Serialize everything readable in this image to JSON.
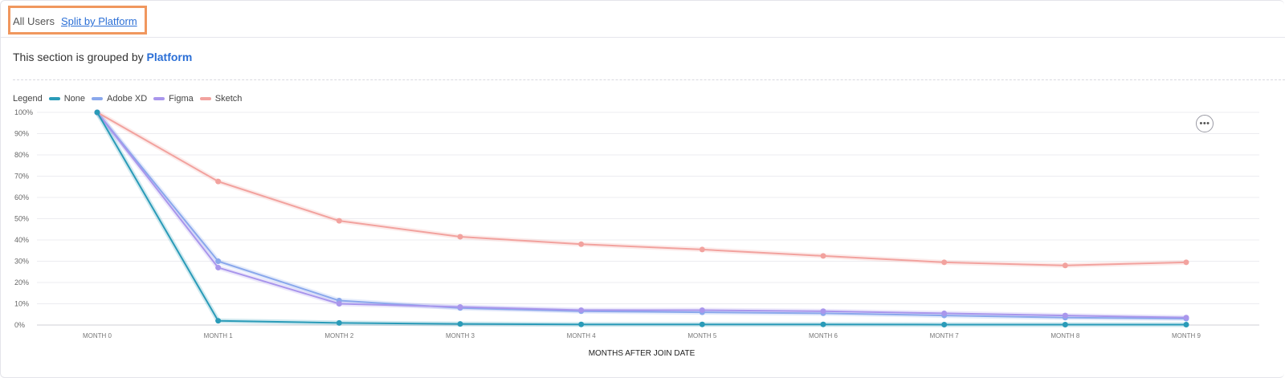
{
  "tabs": {
    "all_users": "All Users",
    "split_by_platform": "Split by Platform"
  },
  "grouping": {
    "prefix": "This section is grouped by",
    "field": "Platform"
  },
  "legend": {
    "title": "Legend"
  },
  "menu": {
    "more_icon": "ellipsis-icon",
    "more_glyph": "•••"
  },
  "colors": {
    "accent_link": "#2b6fd6",
    "highlight_border": "#f0975e"
  },
  "chart_data": {
    "type": "line",
    "xlabel": "MONTHS AFTER JOIN DATE",
    "ylabel": "",
    "categories": [
      "MONTH 0",
      "MONTH 1",
      "MONTH 2",
      "MONTH 3",
      "MONTH 4",
      "MONTH 5",
      "MONTH 6",
      "MONTH 7",
      "MONTH 8",
      "MONTH 9"
    ],
    "y_ticks": [
      "0%",
      "10%",
      "20%",
      "30%",
      "40%",
      "50%",
      "60%",
      "70%",
      "80%",
      "90%",
      "100%"
    ],
    "ylim": [
      0,
      100
    ],
    "grid": true,
    "legend_position": "top-left",
    "series": [
      {
        "name": "None",
        "color": "#2a9bb8",
        "values": [
          100,
          2,
          1,
          0.5,
          0.3,
          0.3,
          0.3,
          0.2,
          0.2,
          0.2
        ]
      },
      {
        "name": "Adobe XD",
        "color": "#8aa8ec",
        "values": [
          100,
          30,
          11.5,
          8,
          6.5,
          6,
          5.5,
          4.5,
          3.5,
          3
        ]
      },
      {
        "name": "Figma",
        "color": "#a996ec",
        "values": [
          100,
          27,
          10,
          8.5,
          7,
          7,
          6.5,
          5.5,
          4.5,
          3.5
        ]
      },
      {
        "name": "Sketch",
        "color": "#f2a29e",
        "values": [
          100,
          67.5,
          49,
          41.5,
          38,
          35.5,
          32.5,
          29.5,
          28,
          29.5
        ]
      }
    ]
  }
}
